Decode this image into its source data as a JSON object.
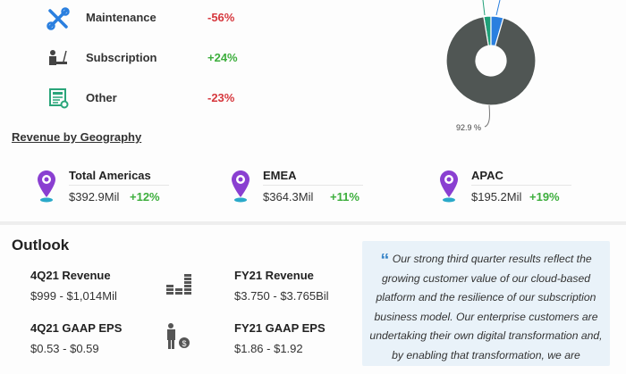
{
  "segments": [
    {
      "name": "Maintenance",
      "change": "-56%",
      "icon": "tools-icon",
      "trend": "down"
    },
    {
      "name": "Subscription",
      "change": "+24%",
      "icon": "person-at-desk-icon",
      "trend": "up"
    },
    {
      "name": "Other",
      "change": "-23%",
      "icon": "document-refresh-icon",
      "trend": "down"
    }
  ],
  "chart_data": {
    "type": "pie",
    "donut": true,
    "slices": [
      {
        "value": 92.9,
        "label": "92.9 %",
        "color": "#505654"
      },
      {
        "value": 2.6,
        "label": "",
        "color": "#1fa078"
      },
      {
        "value": 4.5,
        "label": "",
        "color": "#2a7fdf"
      }
    ]
  },
  "geography": {
    "title": "Revenue by Geography",
    "regions": [
      {
        "name": "Total Americas",
        "revenue": "$392.9Mil",
        "change": "+12%"
      },
      {
        "name": "EMEA",
        "revenue": "$364.3Mil",
        "change": "+11%"
      },
      {
        "name": "APAC",
        "revenue": "$195.2Mil",
        "change": "+19%"
      }
    ]
  },
  "outlook": {
    "title": "Outlook",
    "items": [
      {
        "label": "4Q21 Revenue",
        "value": "$999 - $1,014Mil"
      },
      {
        "label": "FY21 Revenue",
        "value": "$3.750 - $3.765Bil"
      },
      {
        "label": "4Q21 GAAP EPS",
        "value": "$0.53 - $0.59"
      },
      {
        "label": "FY21 GAAP EPS",
        "value": "$1.86 - $1.92"
      }
    ],
    "quote_mark": "“",
    "quote": "Our strong third quarter results reflect the growing customer value of our cloud-based platform and the resilience of our subscription business model. Our enterprise customers are undertaking their own digital transformation and, by enabling that transformation, we are"
  },
  "colors": {
    "down": "#d6383e",
    "up": "#3dae3d",
    "pin": "#8a3fd1",
    "quote_bg": "#e9f2f9"
  }
}
